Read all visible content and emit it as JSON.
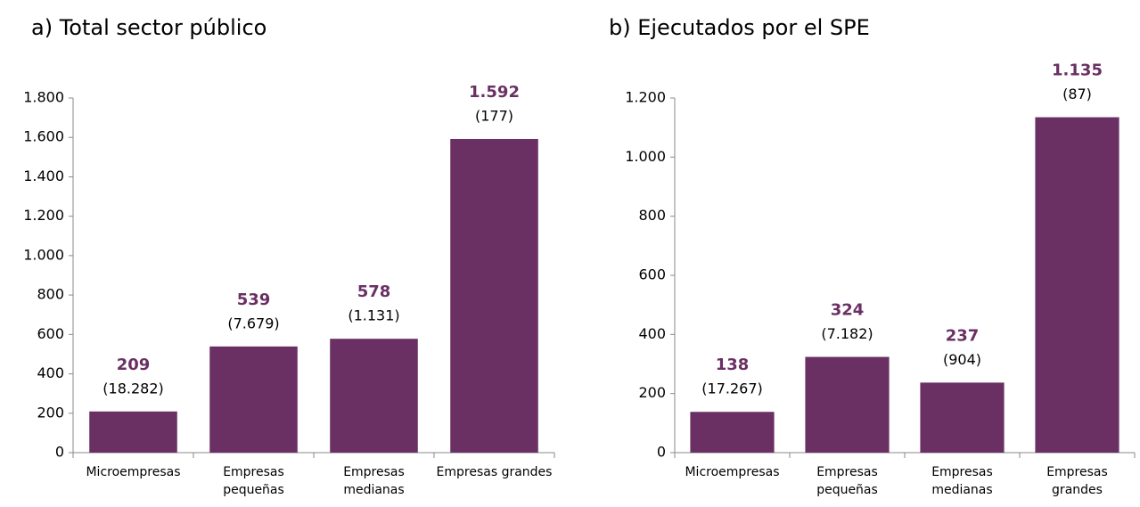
{
  "chart_data": [
    {
      "type": "bar",
      "title": "a) Total sector público",
      "categories": [
        "Microempresas",
        "Empresas pequeñas",
        "Empresas medianas",
        "Empresas grandes"
      ],
      "values": [
        209,
        539,
        578,
        1592
      ],
      "value_labels": [
        "209",
        "539",
        "578",
        "1.592"
      ],
      "count_labels": [
        "(18.282)",
        "(7.679)",
        "(1.131)",
        "(177)"
      ],
      "color": "#6a3063",
      "ylim": [
        0,
        1800
      ],
      "yticks": [
        0,
        200,
        400,
        600,
        800,
        {
          "value": 1000,
          "label": "1.000"
        },
        {
          "value": 1200,
          "label": "1.200"
        },
        {
          "value": 1400,
          "label": "1.400"
        },
        {
          "value": 1600,
          "label": "1.600"
        },
        {
          "value": 1800,
          "label": "1.800"
        }
      ]
    },
    {
      "type": "bar",
      "title": "b) Ejecutados por el SPE",
      "categories": [
        "Microempresas",
        "Empresas pequeñas",
        "Empresas medianas",
        "Empresas grandes"
      ],
      "values": [
        138,
        324,
        237,
        1135
      ],
      "value_labels": [
        "138",
        "324",
        "237",
        "1.135"
      ],
      "count_labels": [
        "(17.267)",
        "(7.182)",
        "(904)",
        "(87)"
      ],
      "color": "#6a3063",
      "ylim": [
        0,
        1200
      ],
      "yticks": [
        0,
        200,
        400,
        600,
        800,
        {
          "value": 1000,
          "label": "1.000"
        },
        {
          "value": 1200,
          "label": "1.200"
        }
      ]
    }
  ]
}
